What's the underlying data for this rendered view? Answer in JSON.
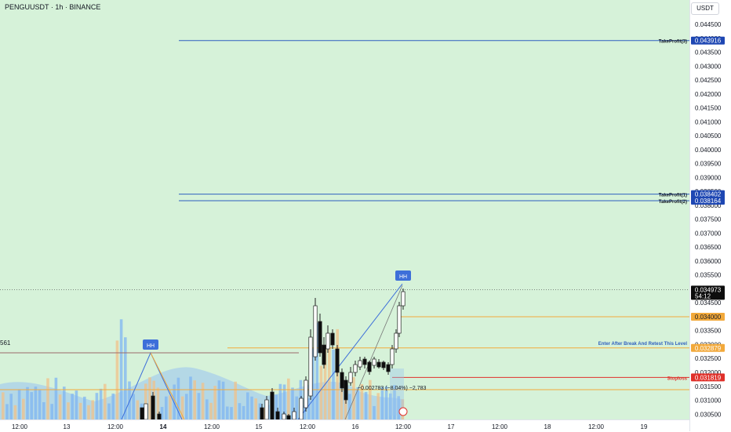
{
  "symbol": "PENGUUSDT · 1h · BINANCE",
  "currency": "USDT",
  "price_axis": {
    "ticks": [
      "0.044500",
      "0.044000",
      "0.043500",
      "0.043000",
      "0.042500",
      "0.042000",
      "0.041500",
      "0.041000",
      "0.040500",
      "0.040000",
      "0.039500",
      "0.039000",
      "0.038500",
      "0.038000",
      "0.037500",
      "0.037000",
      "0.036500",
      "0.036000",
      "0.035500",
      "0.035000",
      "0.034500",
      "0.034000",
      "0.033500",
      "0.033000",
      "0.032500",
      "0.032000",
      "0.031500",
      "0.031000",
      "0.030500"
    ],
    "min": 0.0302,
    "max": 0.0449
  },
  "time_axis": [
    "12:00",
    "13",
    "12:00",
    "14",
    "12:00",
    "15",
    "12:00",
    "16",
    "12:00",
    "17",
    "12:00",
    "18",
    "12:00",
    "19"
  ],
  "levels": [
    {
      "name": "TakeProfit(3)",
      "price": "0.043916",
      "value": 0.043916,
      "color": "#2f5fbf",
      "label_bg": "#1e47b3"
    },
    {
      "name": "TakeProfit(1)",
      "price": "0.038402",
      "value": 0.038402,
      "color": "#2f5fbf",
      "label_bg": "#1e47b3"
    },
    {
      "name": "TakeProfit(2)",
      "price": "0.038164",
      "value": 0.038164,
      "color": "#2f5fbf",
      "label_bg": "#1e47b3"
    },
    {
      "name": "Enter After Break And Retest This Level",
      "price": "0.032879",
      "value": 0.032879,
      "color": "#f2a93b",
      "label_bg": "#f2a93b"
    },
    {
      "name": "Stoploss",
      "price": "0.031819",
      "value": 0.031819,
      "color": "#e0302a",
      "label_bg": "#e0302a"
    }
  ],
  "current_price": {
    "price": "0.034973",
    "countdown": "54:12",
    "value": 0.034973
  },
  "orange_level": {
    "price": "0.034000",
    "value": 0.034
  },
  "hh_marks": [
    "HH",
    "HH"
  ],
  "left_cut_label": "561",
  "measure_label": "−0.002783 (−8.04%) −2,783",
  "colors": {
    "chart_bg": "#d6f2d9",
    "up": "#ffffff",
    "down": "#0d0d0d",
    "volume": "#7fb6f2",
    "accent": "#2962ff"
  }
}
